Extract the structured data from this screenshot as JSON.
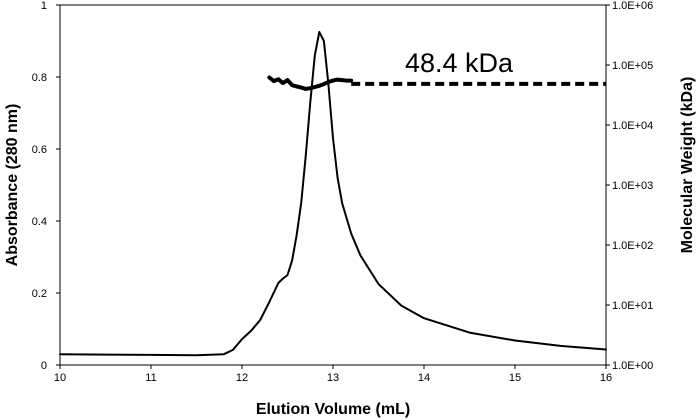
{
  "chart_data": {
    "type": "line",
    "xlabel": "Elution Volume (mL)",
    "ylabel": "Absorbance (280 nm)",
    "y2label": "Molecular Weight (kDa)",
    "xlim": [
      10,
      16
    ],
    "ylim": [
      0,
      1
    ],
    "y2lim": [
      1,
      1000000
    ],
    "y2scale": "log",
    "x_ticks": [
      "10",
      "11",
      "12",
      "13",
      "14",
      "15",
      "16"
    ],
    "y_ticks": [
      "0",
      "0.2",
      "0.4",
      "0.6",
      "0.8",
      "1"
    ],
    "y2_ticks": [
      "1.0E+00",
      "1.0E+01",
      "1.0E+02",
      "1.0E+03",
      "1.0E+04",
      "1.0E+05",
      "1.0E+06"
    ],
    "annotation": "48.4 kDa",
    "grid": false,
    "series": [
      {
        "axis": "left",
        "style": "solid",
        "points": [
          [
            10.0,
            0.03
          ],
          [
            10.5,
            0.029
          ],
          [
            11.0,
            0.028
          ],
          [
            11.5,
            0.027
          ],
          [
            11.8,
            0.03
          ],
          [
            11.9,
            0.042
          ],
          [
            12.0,
            0.072
          ],
          [
            12.1,
            0.095
          ],
          [
            12.2,
            0.125
          ],
          [
            12.3,
            0.175
          ],
          [
            12.4,
            0.228
          ],
          [
            12.45,
            0.24
          ],
          [
            12.5,
            0.25
          ],
          [
            12.55,
            0.29
          ],
          [
            12.6,
            0.36
          ],
          [
            12.65,
            0.45
          ],
          [
            12.7,
            0.58
          ],
          [
            12.75,
            0.73
          ],
          [
            12.8,
            0.86
          ],
          [
            12.85,
            0.925
          ],
          [
            12.9,
            0.9
          ],
          [
            12.95,
            0.78
          ],
          [
            13.0,
            0.63
          ],
          [
            13.05,
            0.52
          ],
          [
            13.1,
            0.45
          ],
          [
            13.2,
            0.365
          ],
          [
            13.3,
            0.305
          ],
          [
            13.5,
            0.225
          ],
          [
            13.75,
            0.165
          ],
          [
            14.0,
            0.13
          ],
          [
            14.5,
            0.09
          ],
          [
            15.0,
            0.068
          ],
          [
            15.5,
            0.053
          ],
          [
            16.0,
            0.043
          ]
        ]
      },
      {
        "axis": "right",
        "style": "thick-noisy",
        "points": [
          [
            12.3,
            62000
          ],
          [
            12.35,
            54000
          ],
          [
            12.4,
            58000
          ],
          [
            12.45,
            50000
          ],
          [
            12.5,
            56000
          ],
          [
            12.55,
            46000
          ],
          [
            12.6,
            44000
          ],
          [
            12.65,
            42000
          ],
          [
            12.7,
            40000
          ],
          [
            12.75,
            41000
          ],
          [
            12.8,
            43000
          ],
          [
            12.85,
            45000
          ],
          [
            12.9,
            48000
          ],
          [
            12.95,
            52000
          ],
          [
            13.0,
            55000
          ],
          [
            13.05,
            57000
          ],
          [
            13.1,
            56000
          ],
          [
            13.15,
            55000
          ],
          [
            13.2,
            55000
          ]
        ]
      },
      {
        "axis": "right",
        "style": "dashed",
        "points": [
          [
            13.2,
            48400
          ],
          [
            16.0,
            48400
          ]
        ]
      }
    ]
  }
}
